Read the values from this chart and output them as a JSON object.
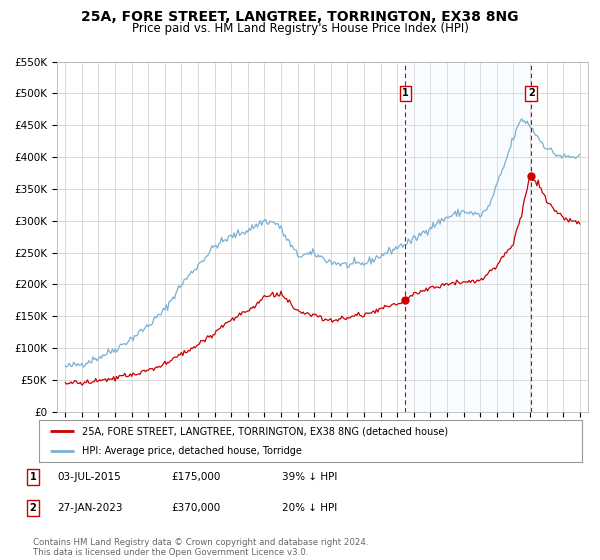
{
  "title": "25A, FORE STREET, LANGTREE, TORRINGTON, EX38 8NG",
  "subtitle": "Price paid vs. HM Land Registry's House Price Index (HPI)",
  "title_fontsize": 10,
  "subtitle_fontsize": 8.5,
  "ylim": [
    0,
    550000
  ],
  "yticks": [
    0,
    50000,
    100000,
    150000,
    200000,
    250000,
    300000,
    350000,
    400000,
    450000,
    500000,
    550000
  ],
  "ytick_labels": [
    "£0",
    "£50K",
    "£100K",
    "£150K",
    "£200K",
    "£250K",
    "£300K",
    "£350K",
    "£400K",
    "£450K",
    "£500K",
    "£550K"
  ],
  "xlim_start": 1994.5,
  "xlim_end": 2026.5,
  "xticks": [
    1995,
    1996,
    1997,
    1998,
    1999,
    2000,
    2001,
    2002,
    2003,
    2004,
    2005,
    2006,
    2007,
    2008,
    2009,
    2010,
    2011,
    2012,
    2013,
    2014,
    2015,
    2016,
    2017,
    2018,
    2019,
    2020,
    2021,
    2022,
    2023,
    2024,
    2025,
    2026
  ],
  "red_line_color": "#cc0000",
  "blue_line_color": "#7ab0d4",
  "vline_color": "#cc0000",
  "shade_color": "#ddeeff",
  "transaction1_x": 2015.5,
  "transaction1_y": 175000,
  "transaction2_x": 2023.08,
  "transaction2_y": 370000,
  "marker1_label": "1",
  "marker2_label": "2",
  "legend_label_red": "25A, FORE STREET, LANGTREE, TORRINGTON, EX38 8NG (detached house)",
  "legend_label_blue": "HPI: Average price, detached house, Torridge",
  "table_rows": [
    {
      "num": "1",
      "date": "03-JUL-2015",
      "price": "£175,000",
      "hpi": "39% ↓ HPI"
    },
    {
      "num": "2",
      "date": "27-JAN-2023",
      "price": "£370,000",
      "hpi": "20% ↓ HPI"
    }
  ],
  "footnote": "Contains HM Land Registry data © Crown copyright and database right 2024.\nThis data is licensed under the Open Government Licence v3.0.",
  "background_color": "#ffffff",
  "grid_color": "#cccccc",
  "hpi_anchors_x": [
    1995.0,
    1996.0,
    1997.0,
    1998.0,
    1999.0,
    2000.0,
    2001.0,
    2002.0,
    2003.0,
    2004.0,
    2005.0,
    2006.0,
    2007.0,
    2007.8,
    2008.5,
    2009.0,
    2010.0,
    2011.0,
    2012.0,
    2013.0,
    2014.0,
    2015.0,
    2016.0,
    2017.0,
    2018.0,
    2019.0,
    2020.0,
    2020.5,
    2021.0,
    2021.5,
    2022.0,
    2022.5,
    2023.0,
    2023.5,
    2024.0,
    2024.5,
    2025.0,
    2026.0
  ],
  "hpi_anchors_y": [
    70000,
    75000,
    85000,
    98000,
    115000,
    135000,
    160000,
    200000,
    230000,
    260000,
    275000,
    285000,
    300000,
    295000,
    265000,
    245000,
    248000,
    235000,
    230000,
    232000,
    245000,
    258000,
    270000,
    290000,
    305000,
    315000,
    308000,
    320000,
    355000,
    390000,
    430000,
    460000,
    450000,
    430000,
    415000,
    405000,
    400000,
    400000
  ],
  "price_anchors_x": [
    1995.0,
    1996.0,
    1997.0,
    1998.0,
    1999.0,
    2000.0,
    2001.0,
    2002.0,
    2003.0,
    2004.0,
    2005.0,
    2006.0,
    2007.0,
    2008.0,
    2008.5,
    2009.0,
    2010.0,
    2011.0,
    2012.0,
    2013.0,
    2014.0,
    2015.0,
    2015.5,
    2016.0,
    2017.0,
    2018.0,
    2019.0,
    2020.0,
    2021.0,
    2022.0,
    2022.5,
    2023.0,
    2023.5,
    2024.0,
    2025.0,
    2026.0
  ],
  "price_anchors_y": [
    45000,
    45000,
    48000,
    52000,
    58000,
    65000,
    75000,
    90000,
    105000,
    125000,
    145000,
    158000,
    180000,
    185000,
    172000,
    155000,
    152000,
    142000,
    148000,
    152000,
    162000,
    168000,
    175000,
    185000,
    195000,
    200000,
    205000,
    205000,
    230000,
    265000,
    310000,
    370000,
    358000,
    330000,
    305000,
    295000
  ]
}
